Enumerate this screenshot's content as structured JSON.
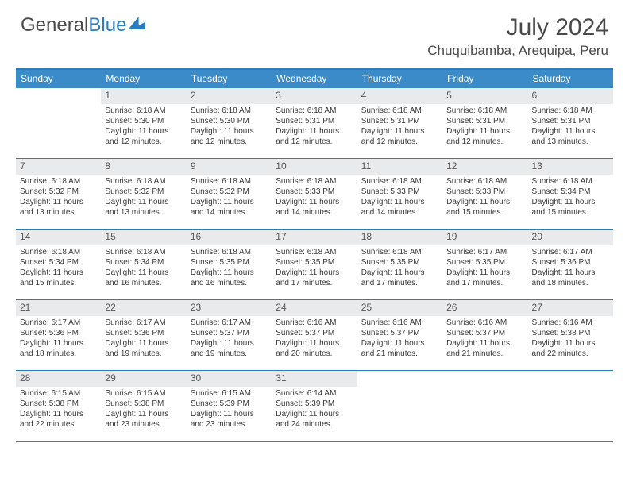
{
  "logo": {
    "part1": "General",
    "part2": "Blue"
  },
  "title": "July 2024",
  "location": "Chuquibamba, Arequipa, Peru",
  "colors": {
    "header_bg": "#3b8bc9",
    "border": "#2b7bbf",
    "daynum_bg": "#e9eaeb",
    "text": "#3a3a3a"
  },
  "weekdays": [
    "Sunday",
    "Monday",
    "Tuesday",
    "Wednesday",
    "Thursday",
    "Friday",
    "Saturday"
  ],
  "weeks": [
    [
      null,
      {
        "n": "1",
        "sr": "Sunrise: 6:18 AM",
        "ss": "Sunset: 5:30 PM",
        "dl": "Daylight: 11 hours and 12 minutes."
      },
      {
        "n": "2",
        "sr": "Sunrise: 6:18 AM",
        "ss": "Sunset: 5:30 PM",
        "dl": "Daylight: 11 hours and 12 minutes."
      },
      {
        "n": "3",
        "sr": "Sunrise: 6:18 AM",
        "ss": "Sunset: 5:31 PM",
        "dl": "Daylight: 11 hours and 12 minutes."
      },
      {
        "n": "4",
        "sr": "Sunrise: 6:18 AM",
        "ss": "Sunset: 5:31 PM",
        "dl": "Daylight: 11 hours and 12 minutes."
      },
      {
        "n": "5",
        "sr": "Sunrise: 6:18 AM",
        "ss": "Sunset: 5:31 PM",
        "dl": "Daylight: 11 hours and 12 minutes."
      },
      {
        "n": "6",
        "sr": "Sunrise: 6:18 AM",
        "ss": "Sunset: 5:31 PM",
        "dl": "Daylight: 11 hours and 13 minutes."
      }
    ],
    [
      {
        "n": "7",
        "sr": "Sunrise: 6:18 AM",
        "ss": "Sunset: 5:32 PM",
        "dl": "Daylight: 11 hours and 13 minutes."
      },
      {
        "n": "8",
        "sr": "Sunrise: 6:18 AM",
        "ss": "Sunset: 5:32 PM",
        "dl": "Daylight: 11 hours and 13 minutes."
      },
      {
        "n": "9",
        "sr": "Sunrise: 6:18 AM",
        "ss": "Sunset: 5:32 PM",
        "dl": "Daylight: 11 hours and 14 minutes."
      },
      {
        "n": "10",
        "sr": "Sunrise: 6:18 AM",
        "ss": "Sunset: 5:33 PM",
        "dl": "Daylight: 11 hours and 14 minutes."
      },
      {
        "n": "11",
        "sr": "Sunrise: 6:18 AM",
        "ss": "Sunset: 5:33 PM",
        "dl": "Daylight: 11 hours and 14 minutes."
      },
      {
        "n": "12",
        "sr": "Sunrise: 6:18 AM",
        "ss": "Sunset: 5:33 PM",
        "dl": "Daylight: 11 hours and 15 minutes."
      },
      {
        "n": "13",
        "sr": "Sunrise: 6:18 AM",
        "ss": "Sunset: 5:34 PM",
        "dl": "Daylight: 11 hours and 15 minutes."
      }
    ],
    [
      {
        "n": "14",
        "sr": "Sunrise: 6:18 AM",
        "ss": "Sunset: 5:34 PM",
        "dl": "Daylight: 11 hours and 15 minutes."
      },
      {
        "n": "15",
        "sr": "Sunrise: 6:18 AM",
        "ss": "Sunset: 5:34 PM",
        "dl": "Daylight: 11 hours and 16 minutes."
      },
      {
        "n": "16",
        "sr": "Sunrise: 6:18 AM",
        "ss": "Sunset: 5:35 PM",
        "dl": "Daylight: 11 hours and 16 minutes."
      },
      {
        "n": "17",
        "sr": "Sunrise: 6:18 AM",
        "ss": "Sunset: 5:35 PM",
        "dl": "Daylight: 11 hours and 17 minutes."
      },
      {
        "n": "18",
        "sr": "Sunrise: 6:18 AM",
        "ss": "Sunset: 5:35 PM",
        "dl": "Daylight: 11 hours and 17 minutes."
      },
      {
        "n": "19",
        "sr": "Sunrise: 6:17 AM",
        "ss": "Sunset: 5:35 PM",
        "dl": "Daylight: 11 hours and 17 minutes."
      },
      {
        "n": "20",
        "sr": "Sunrise: 6:17 AM",
        "ss": "Sunset: 5:36 PM",
        "dl": "Daylight: 11 hours and 18 minutes."
      }
    ],
    [
      {
        "n": "21",
        "sr": "Sunrise: 6:17 AM",
        "ss": "Sunset: 5:36 PM",
        "dl": "Daylight: 11 hours and 18 minutes."
      },
      {
        "n": "22",
        "sr": "Sunrise: 6:17 AM",
        "ss": "Sunset: 5:36 PM",
        "dl": "Daylight: 11 hours and 19 minutes."
      },
      {
        "n": "23",
        "sr": "Sunrise: 6:17 AM",
        "ss": "Sunset: 5:37 PM",
        "dl": "Daylight: 11 hours and 19 minutes."
      },
      {
        "n": "24",
        "sr": "Sunrise: 6:16 AM",
        "ss": "Sunset: 5:37 PM",
        "dl": "Daylight: 11 hours and 20 minutes."
      },
      {
        "n": "25",
        "sr": "Sunrise: 6:16 AM",
        "ss": "Sunset: 5:37 PM",
        "dl": "Daylight: 11 hours and 21 minutes."
      },
      {
        "n": "26",
        "sr": "Sunrise: 6:16 AM",
        "ss": "Sunset: 5:37 PM",
        "dl": "Daylight: 11 hours and 21 minutes."
      },
      {
        "n": "27",
        "sr": "Sunrise: 6:16 AM",
        "ss": "Sunset: 5:38 PM",
        "dl": "Daylight: 11 hours and 22 minutes."
      }
    ],
    [
      {
        "n": "28",
        "sr": "Sunrise: 6:15 AM",
        "ss": "Sunset: 5:38 PM",
        "dl": "Daylight: 11 hours and 22 minutes."
      },
      {
        "n": "29",
        "sr": "Sunrise: 6:15 AM",
        "ss": "Sunset: 5:38 PM",
        "dl": "Daylight: 11 hours and 23 minutes."
      },
      {
        "n": "30",
        "sr": "Sunrise: 6:15 AM",
        "ss": "Sunset: 5:39 PM",
        "dl": "Daylight: 11 hours and 23 minutes."
      },
      {
        "n": "31",
        "sr": "Sunrise: 6:14 AM",
        "ss": "Sunset: 5:39 PM",
        "dl": "Daylight: 11 hours and 24 minutes."
      },
      null,
      null,
      null
    ]
  ]
}
